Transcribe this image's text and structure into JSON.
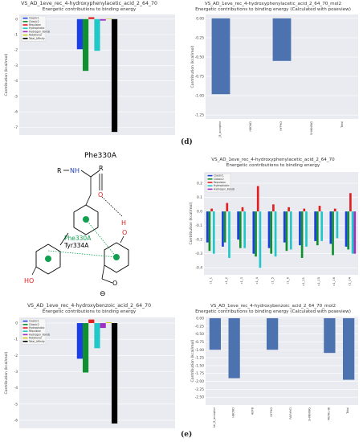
{
  "colors": {
    "panel_bg": "#e9ebf1",
    "grid": "#ffffff",
    "bar_default": "#4c72b0",
    "annot_blue": "#1f3fbf",
    "annot_green": "#10a050",
    "annot_red": "#e02020"
  },
  "panel_labels": {
    "d": "(d)",
    "e": "(e)"
  },
  "energy_legend_a": [
    "Classic1",
    "Classic2",
    "Repulsion",
    "Hydrophobic",
    "Hydrogen_Bonds",
    "Rotational",
    "Total_Affinity"
  ],
  "energy_legend_b": [
    "Classic1",
    "Classic2",
    "Hydrophobic",
    "Repulsion",
    "Hydrogen_Bonds",
    "Rotational",
    "Total_Affinity"
  ],
  "multi_legend": [
    "Classic1",
    "Classic2",
    "Repulsion",
    "Hydrophobic",
    "Hydrogen_Bonds"
  ],
  "molecule": {
    "title": "Phe330A",
    "r_left": "R",
    "nh": "NH",
    "r_right": "R",
    "o": "O",
    "h": "H",
    "o2": "O",
    "phe": "Phe330A",
    "tyr": "Tyr334A",
    "ho": "HO",
    "o3": "O",
    "minus": "⊖"
  },
  "chart_data": [
    {
      "type": "bar",
      "title": "VS_AD_1eve_rec_4-hydroxyphenylacetic_acid_2_64_70",
      "subtitle": "Energetic contributions to binding energy",
      "ylabel": "Contribution (kcal/mol)",
      "ylim": [
        -7.5,
        0.3
      ],
      "yticks": [
        0,
        -1,
        -2,
        -3,
        -4,
        -5,
        -6,
        -7
      ],
      "legend": "top-left",
      "grid": true,
      "series": [
        {
          "name": "Classic1",
          "color": "#1b3fe0",
          "value": -1.95
        },
        {
          "name": "Classic2",
          "color": "#109030",
          "value": -3.35
        },
        {
          "name": "Repulsion",
          "color": "#e02020",
          "value": 0.12
        },
        {
          "name": "Hydrophobic",
          "color": "#20c8c8",
          "value": -2.05
        },
        {
          "name": "Hydrogen_Bonds",
          "color": "#a030c0",
          "value": -0.1
        },
        {
          "name": "Rotational",
          "color": "#c8c820",
          "value": 0.02
        },
        {
          "name": "Total_Affinity",
          "color": "#000000",
          "value": -7.3
        }
      ]
    },
    {
      "type": "bar",
      "title": "VS_AD_1eve_rec_4-hydroxyphenylacetic_acid_2_64_70_mol2",
      "subtitle": "Energetic contributions to binding energy (Calculated with poseview)",
      "ylabel": "Contribution (kcal/mol)",
      "ylim": [
        -1.3,
        0.05
      ],
      "yticks": [
        "0.00",
        "-0.25",
        "-0.50",
        "-0.75",
        "-1.00",
        "-1.25"
      ],
      "grid": true,
      "categories": [
        "metal_B_acceptor",
        "HBOND",
        "HYPHO",
        "SHINNING",
        "Total"
      ],
      "values": [
        -0.98,
        0,
        -0.55,
        0,
        0
      ]
    },
    {
      "type": "bar",
      "title": "VS_AD_1eve_rec_4-hydroxyphenylacetic_acid_2_64_70",
      "subtitle": "Energetic contributions to binding energy",
      "ylabel": "Contribution (kcal/mol)",
      "ylim": [
        -0.45,
        0.28
      ],
      "yticks": [
        "0.2",
        "0.1",
        "0.0",
        "-0.1",
        "-0.2",
        "-0.3",
        "-0.4"
      ],
      "legend": "top-left",
      "grid": true,
      "categories": [
        "c1_1",
        "c1_2",
        "c1_3",
        "c1_4",
        "c1_5",
        "c1_6",
        "c1_11",
        "c1_15",
        "c1_16",
        "c1_24"
      ],
      "series": [
        {
          "name": "Classic1",
          "color": "#1b3fe0",
          "values": [
            -0.22,
            -0.25,
            -0.2,
            -0.3,
            -0.26,
            -0.22,
            -0.24,
            -0.21,
            -0.23,
            -0.25
          ]
        },
        {
          "name": "Classic2",
          "color": "#109030",
          "values": [
            -0.28,
            -0.22,
            -0.26,
            -0.32,
            -0.3,
            -0.28,
            -0.33,
            -0.24,
            -0.31,
            -0.27
          ]
        },
        {
          "name": "Repulsion",
          "color": "#e02020",
          "values": [
            0.02,
            0.06,
            0.03,
            0.18,
            0.05,
            0.03,
            0.02,
            0.04,
            0.02,
            0.13
          ]
        },
        {
          "name": "Hydrophobic",
          "color": "#20c8c8",
          "values": [
            -0.3,
            -0.33,
            -0.26,
            -0.4,
            -0.32,
            -0.27,
            -0.25,
            -0.21,
            -0.19,
            -0.3
          ]
        },
        {
          "name": "Hydrogen_Bonds",
          "color": "#a030c0",
          "values": [
            0,
            0,
            0,
            0,
            0,
            0,
            0,
            0,
            0,
            -0.3
          ]
        }
      ]
    },
    {
      "type": "bar",
      "title": "VS_AD_1eve_rec_4-hydroxybenzoic_acid_2_64_70",
      "subtitle": "Energetic contributions to binding energy",
      "ylabel": "Contribution (kcal/mol)",
      "ylim": [
        -6.5,
        0.35
      ],
      "yticks": [
        0,
        -1,
        -2,
        -3,
        -4,
        -5,
        -6
      ],
      "legend": "top-left",
      "grid": true,
      "series": [
        {
          "name": "Classic1",
          "color": "#1b3fe0",
          "value": -2.2
        },
        {
          "name": "Classic2",
          "color": "#109030",
          "value": -3.05
        },
        {
          "name": "Repulsion",
          "color": "#e02020",
          "value": 0.22
        },
        {
          "name": "Hydrophobic",
          "color": "#20c8c8",
          "value": -1.55
        },
        {
          "name": "Hydrogen_Bonds",
          "color": "#a030c0",
          "value": -0.3
        },
        {
          "name": "Rotational",
          "color": "#c8c820",
          "value": 0.05
        },
        {
          "name": "Total_Affinity",
          "color": "#000000",
          "value": -6.2
        }
      ]
    },
    {
      "type": "bar",
      "title": "VS_AD_1eve_rec_4-hydroxybenzoic_acid_2_64_70_mol2",
      "subtitle": "Energetic contributions to binding energy (Calculated with poseview)",
      "ylabel": "Contribution (kcal/mol)",
      "ylim": [
        -2.75,
        0.05
      ],
      "yticks": [
        "0.00",
        "-0.25",
        "-0.50",
        "-0.75",
        "-1.00",
        "-1.25",
        "-1.50",
        "-1.75",
        "-2.00",
        "-2.25",
        "-2.50"
      ],
      "grid": true,
      "categories": [
        "metal_B_acceptor",
        "HBOND",
        "HBPB",
        "HYPHO",
        "PAIRHYD",
        "SHINNING",
        "METALHB",
        "Total"
      ],
      "values": [
        -1.0,
        -1.9,
        0,
        -1.0,
        0,
        0,
        -1.1,
        -1.95
      ]
    }
  ]
}
